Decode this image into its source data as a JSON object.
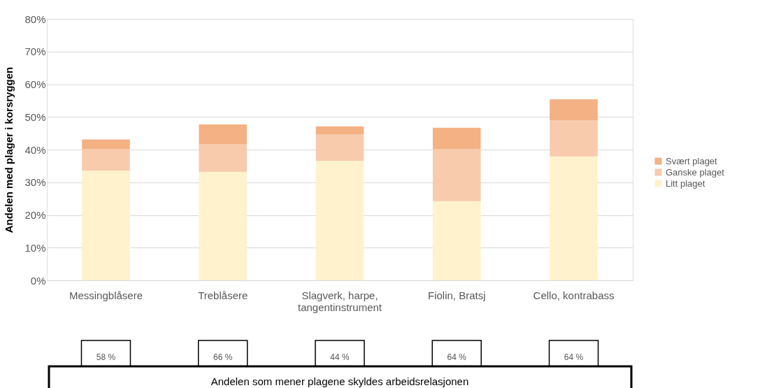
{
  "chart_data": {
    "type": "bar",
    "stacked": true,
    "ylabel": "Andelen med plager i korsryggen",
    "categories": [
      "Messingblåsere",
      "Treblåsere",
      "Slagverk, harpe, tangentinstrument",
      "Fiolin, Bratsj",
      "Cello, kontrabass"
    ],
    "series": [
      {
        "name": "Litt plaget",
        "color": "#fff2cc",
        "values": [
          33.6,
          33.2,
          36.6,
          24.2,
          37.9
        ]
      },
      {
        "name": "Ganske plaget",
        "color": "#f8cbad",
        "values": [
          6.6,
          8.5,
          8.0,
          16.0,
          11.1
        ]
      },
      {
        "name": "Svært plaget",
        "color": "#f4b183",
        "values": [
          2.9,
          6.0,
          2.5,
          6.5,
          6.4
        ]
      }
    ],
    "ylim": [
      0,
      80
    ],
    "yticks": [
      {
        "value": 0,
        "label": "0%"
      },
      {
        "value": 10,
        "label": "10%"
      },
      {
        "value": 20,
        "label": "20%"
      },
      {
        "value": 30,
        "label": "30%"
      },
      {
        "value": 40,
        "label": "40%"
      },
      {
        "value": 50,
        "label": "50%"
      },
      {
        "value": 60,
        "label": "60%"
      },
      {
        "value": 70,
        "label": "70%"
      },
      {
        "value": 80,
        "label": "80%"
      }
    ],
    "grid": "y",
    "legend": "right",
    "annotations": [
      "58 %",
      "66 %",
      "44 %",
      "64 %",
      "64 %",
      "Andelen som mener plagene skyldes arbeidsrelasjonen"
    ]
  }
}
